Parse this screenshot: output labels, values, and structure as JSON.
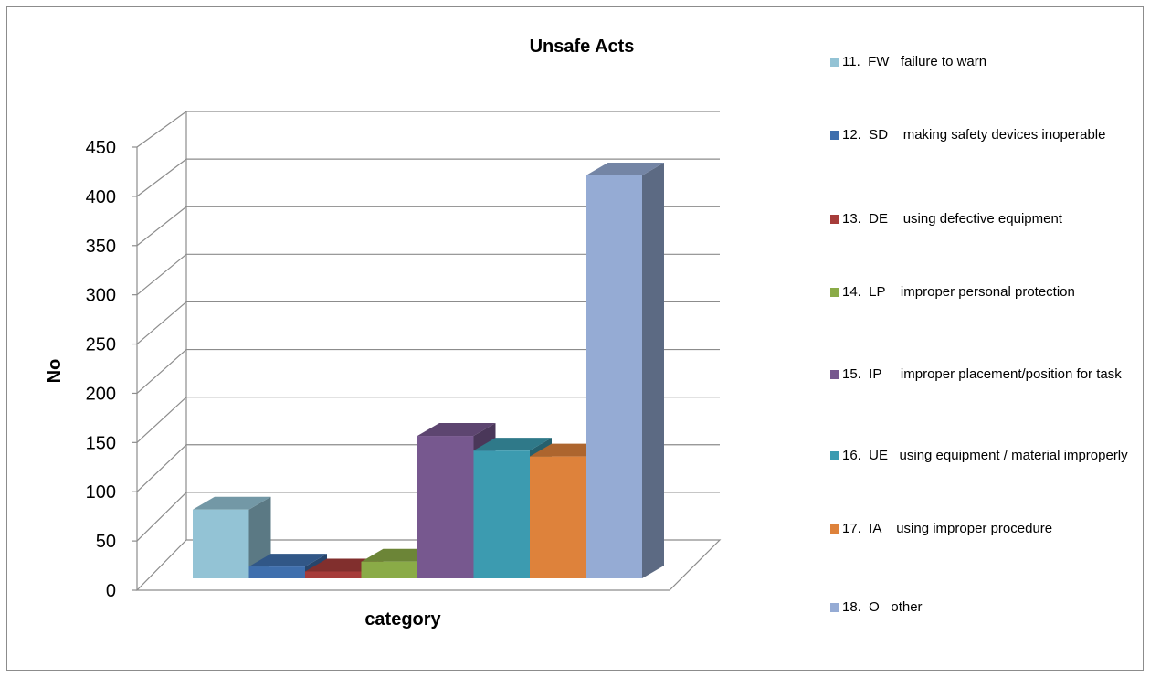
{
  "chart_data": {
    "type": "bar",
    "title": "Unsafe Acts",
    "xlabel": "category",
    "ylabel": "No",
    "ylim": [
      0,
      450
    ],
    "yticks": [
      "0",
      "50",
      "100",
      "150",
      "200",
      "250",
      "300",
      "350",
      "400",
      "450"
    ],
    "grid": true,
    "legend_position": "right",
    "series": [
      {
        "name": "11.  FW   failure to warn",
        "value": 70,
        "color": "#93c3d5"
      },
      {
        "name": "12.  SD    making safety devices inoperable",
        "value": 12,
        "color": "#3f6fad"
      },
      {
        "name": "13.  DE    using defective equipment",
        "value": 7,
        "color": "#a63c3a"
      },
      {
        "name": "14.  LP    improper personal protection",
        "value": 17,
        "color": "#8aab47"
      },
      {
        "name": "15.  IP     improper placement/position for task",
        "value": 145,
        "color": "#77588f"
      },
      {
        "name": "16.  UE   using equipment / material improperly",
        "value": 130,
        "color": "#3c9bb0"
      },
      {
        "name": "17.  IA    using improper procedure",
        "value": 124,
        "color": "#de823b"
      },
      {
        "name": "18.  O   other",
        "value": 410,
        "color": "#95abd4"
      }
    ]
  }
}
